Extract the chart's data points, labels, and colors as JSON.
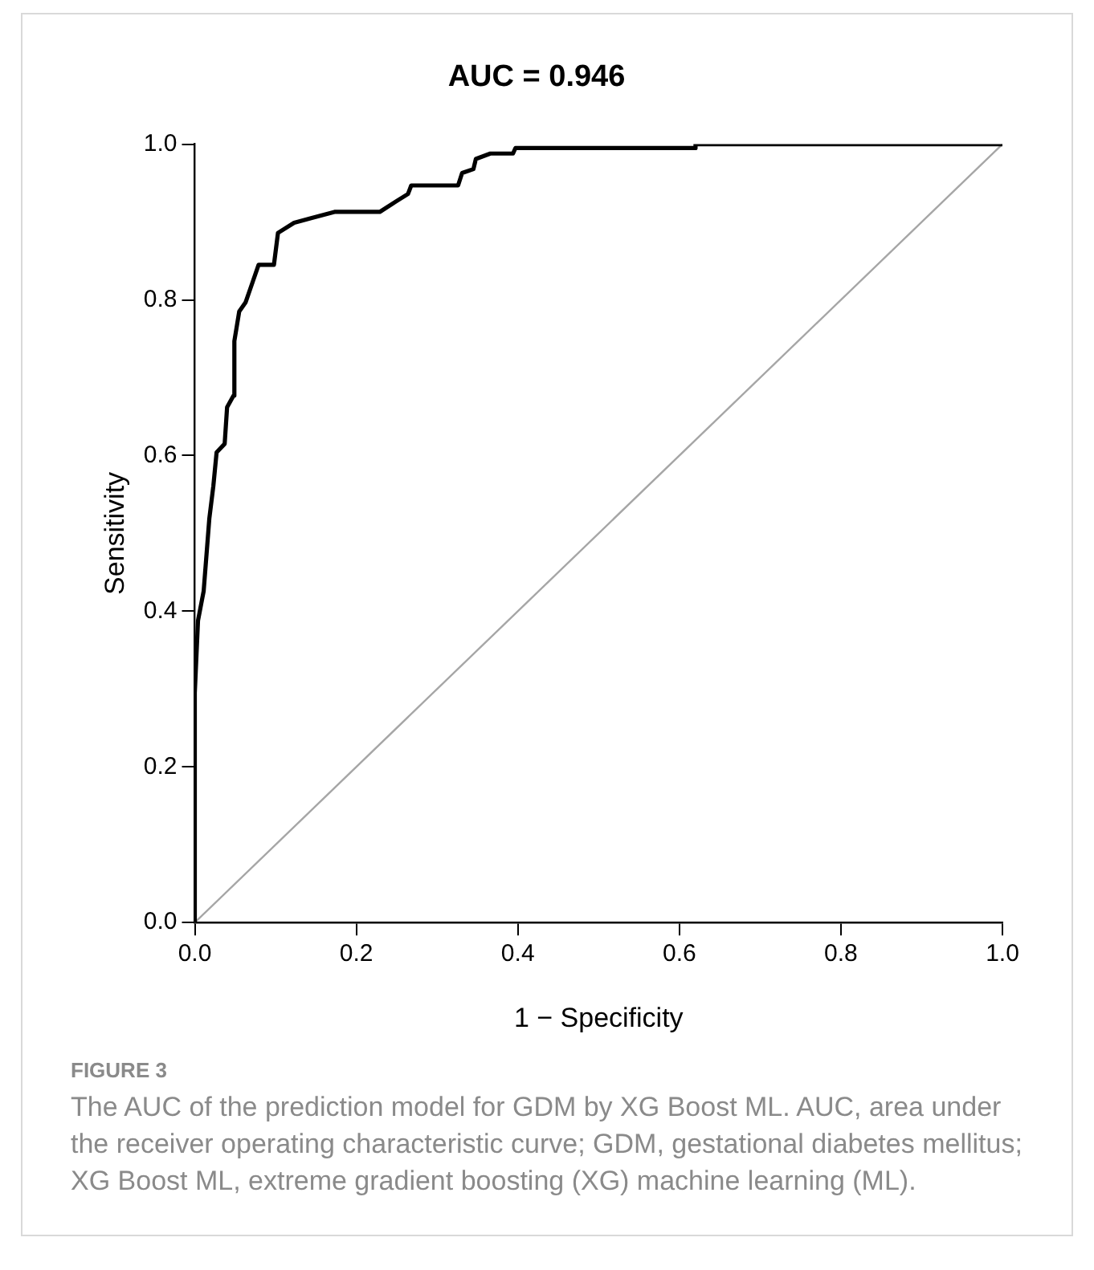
{
  "chart_data": {
    "type": "line",
    "title": "AUC = 0.946",
    "xlabel": "1 − Specificity",
    "ylabel": "Sensitivity",
    "xlim": [
      0,
      1
    ],
    "ylim": [
      0,
      1
    ],
    "xticks": [
      {
        "value": 0,
        "label": "0.0"
      },
      0.2,
      0.4,
      0.6,
      0.8,
      {
        "value": 1,
        "label": "1.0"
      }
    ],
    "yticks": [
      {
        "value": 0,
        "label": "0.0"
      },
      0.2,
      0.4,
      0.6,
      0.8,
      {
        "value": 1,
        "label": "1.0"
      }
    ],
    "grid": false,
    "legend": false,
    "marker": "none",
    "line_style": "solid",
    "series": [
      {
        "color": "#000000",
        "x": [
          0,
          0,
          0.004,
          0.011,
          0.018,
          0.023,
          0.027,
          0.037,
          0.04,
          0.048,
          0.049,
          0.055,
          0.063,
          0.072,
          0.079,
          0.098,
          0.103,
          0.123,
          0.144,
          0.173,
          0.229,
          0.25,
          0.264,
          0.268,
          0.326,
          0.331,
          0.345,
          0.348,
          0.366,
          0.394,
          0.397,
          0.62,
          0.62,
          1
        ],
        "values": [
          0,
          0.295,
          0.388,
          0.426,
          0.519,
          0.561,
          0.604,
          0.615,
          0.662,
          0.677,
          0.747,
          0.785,
          0.797,
          0.824,
          0.845,
          0.845,
          0.886,
          0.899,
          0.905,
          0.913,
          0.913,
          0.927,
          0.936,
          0.947,
          0.947,
          0.963,
          0.968,
          0.981,
          0.988,
          0.988,
          0.995,
          0.995,
          1,
          1
        ]
      },
      {
        "color": "#a6a6a6",
        "x": [
          0,
          1
        ],
        "values": [
          0,
          1
        ]
      }
    ],
    "annotations": [
      "FIGURE 3",
      "The AUC of the prediction model for GDM by XG Boost ML. AUC, area under the receiver operating characteristic curve; GDM, gestational diabetes mellitus; XG Boost ML, extreme gradient boosting (XG) machine learning (ML)."
    ]
  }
}
